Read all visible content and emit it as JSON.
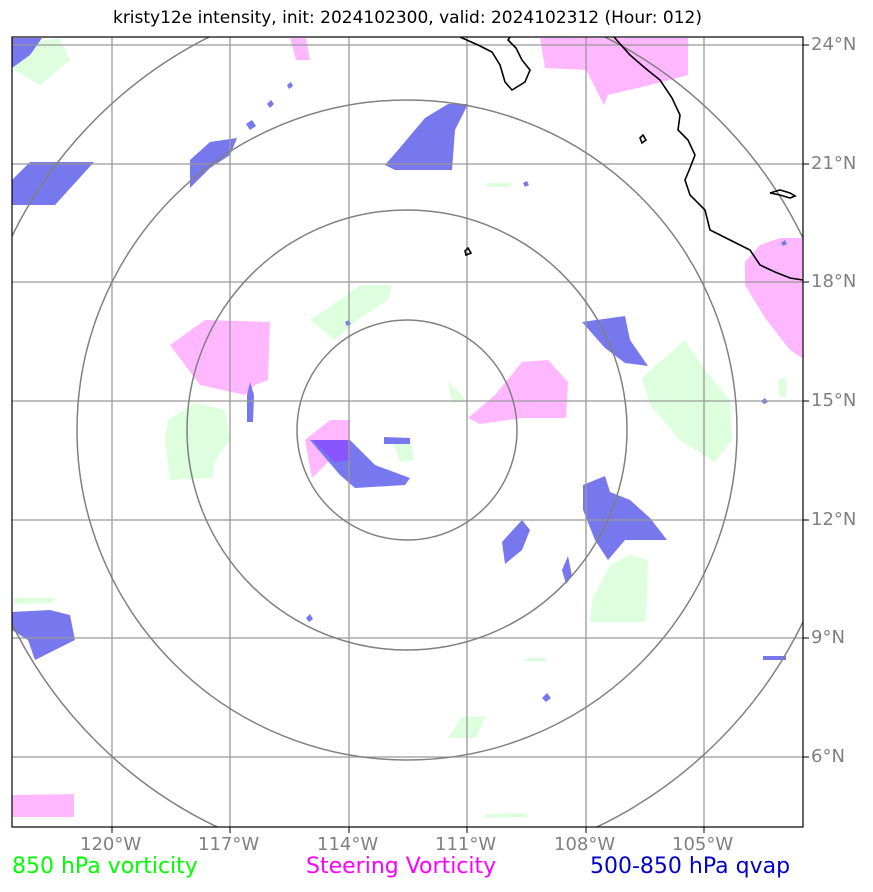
{
  "title": "kristy12e intensity, init: 2024102300, valid: 2024102312 (Hour: 012)",
  "lon_labels": [
    "120°W",
    "117°W",
    "114°W",
    "111°W",
    "108°W",
    "105°W"
  ],
  "lat_labels": [
    "24°N",
    "21°N",
    "18°N",
    "15°N",
    "12°N",
    "9°N",
    "6°N"
  ],
  "legend": {
    "vort850": {
      "label": "850 hPa vorticity",
      "color": "#00ff00"
    },
    "steering": {
      "label": "Steering Vorticity",
      "color": "#ff00ff"
    },
    "qvap": {
      "label": "500-850 hPa qvap",
      "color": "#0000cc"
    }
  },
  "fill_colors": {
    "vort850": "#ddffdd",
    "steering": "#ffb8ff",
    "qvap": "#7777ee",
    "overlap": "#8855ff"
  },
  "range_rings_count": 4,
  "extent": {
    "lon_min": -122.5,
    "lon_max": -102.5,
    "lat_min": 4.0,
    "lat_max": 24.2
  }
}
